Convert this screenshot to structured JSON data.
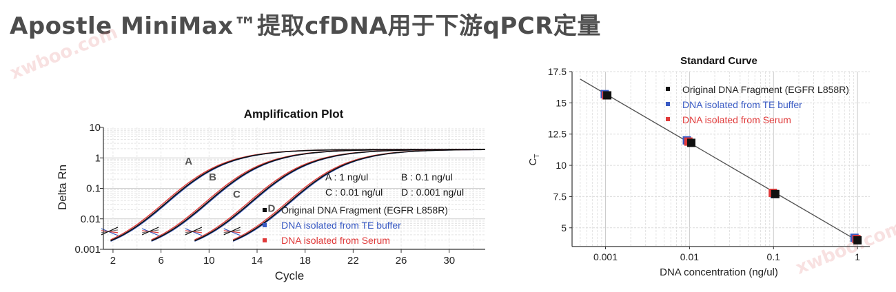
{
  "page": {
    "title": "Apostle MiniMax™提取cfDNA用于下游qPCR定量",
    "watermark": "xwboo.com"
  },
  "colors": {
    "original": "#111111",
    "te_buffer": "#3a5bc4",
    "serum": "#e03a3a",
    "gray_curve": "#777777",
    "fit_line": "#555555"
  },
  "chart_data": [
    {
      "type": "line",
      "title": "Amplification Plot",
      "xlabel": "Cycle",
      "ylabel": "Delta Rn",
      "yscale": "log",
      "xlim": [
        1.2,
        33
      ],
      "ylim": [
        0.001,
        10
      ],
      "grid": true,
      "xticks": [
        "2",
        "6",
        "10",
        "14",
        "18",
        "22",
        "26",
        "30"
      ],
      "yticks": [
        "0.001",
        "0.01",
        "0.1",
        "1",
        "10"
      ],
      "curve_labels": [
        "A",
        "B",
        "C",
        "D"
      ],
      "concentrations": [
        {
          "label": "A : 1 ng/ul",
          "ct": 3.2
        },
        {
          "label": "B : 0.1 ng/ul",
          "ct": 6.6
        },
        {
          "label": "C : 0.01 ng/ul",
          "ct": 10.2
        },
        {
          "label": "D : 0.001 ng/ul",
          "ct": 13.4
        }
      ],
      "legend": [
        {
          "name": "Original DNA Fragment (EGFR L858R)",
          "color": "#111111"
        },
        {
          "name": "DNA isolated from TE buffer",
          "color": "#3a5bc4"
        },
        {
          "name": "DNA isolated from Serum",
          "color": "#e03a3a"
        }
      ],
      "plateau": 1.9
    },
    {
      "type": "scatter",
      "title": "Standard Curve",
      "xlabel": "DNA concentration (ng/ul)",
      "ylabel": "C",
      "ylabel_sub": "T",
      "xscale": "log",
      "xlim": [
        0.0004,
        1.4
      ],
      "ylim": [
        3.5,
        17.5
      ],
      "grid": true,
      "xticks": [
        "0.001",
        "0.01",
        "0.1",
        "1"
      ],
      "yticks": [
        "5",
        "7.5",
        "10",
        "12.5",
        "15",
        "17.5"
      ],
      "legend": [
        {
          "name": "Original DNA Fragment (EGFR L858R)",
          "color": "#111111"
        },
        {
          "name": "DNA isolated from TE buffer",
          "color": "#3a5bc4"
        },
        {
          "name": "DNA isolated from Serum",
          "color": "#e03a3a"
        }
      ],
      "series": [
        {
          "name": "Original DNA Fragment (EGFR L858R)",
          "x": [
            0.00105,
            0.0105,
            0.105,
            1.0
          ],
          "y": [
            15.6,
            11.8,
            7.7,
            4.0
          ]
        },
        {
          "name": "DNA isolated from TE buffer",
          "x": [
            0.00098,
            0.0093,
            0.103,
            0.92
          ],
          "y": [
            15.7,
            12.0,
            7.7,
            4.2
          ]
        },
        {
          "name": "DNA isolated from Serum",
          "x": [
            0.00102,
            0.0097,
            0.098,
            0.97
          ],
          "y": [
            15.6,
            11.9,
            7.8,
            4.1
          ]
        }
      ],
      "fit": {
        "x": [
          0.0005,
          1.1
        ],
        "y": [
          16.9,
          3.8
        ]
      }
    }
  ]
}
